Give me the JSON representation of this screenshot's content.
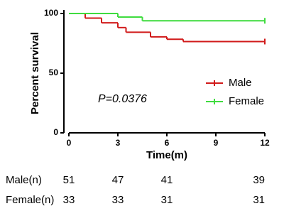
{
  "chart_data": {
    "type": "survival",
    "xlabel": "Time(m)",
    "ylabel": "Percent survival",
    "annotation": "P=0.0376",
    "xlim": [
      0,
      12
    ],
    "xticks": [
      0,
      3,
      6,
      9,
      12
    ],
    "ylim": [
      0,
      103
    ],
    "yticks": [
      0,
      50,
      100
    ],
    "series": [
      {
        "name": "Male",
        "color": "#d11a1a",
        "x": [
          0,
          1,
          2,
          3,
          3.5,
          5,
          6,
          7,
          12
        ],
        "values": [
          100,
          96.1,
          92.2,
          88.2,
          84.3,
          80.4,
          78.4,
          76.5,
          76.5
        ]
      },
      {
        "name": "Female",
        "color": "#3fdc3f",
        "x": [
          0,
          3,
          4.5,
          12
        ],
        "values": [
          100,
          97,
          93.9,
          93.9
        ]
      }
    ],
    "at_risk": [
      {
        "label": "Male(n)",
        "values": [
          51,
          47,
          41,
          39
        ]
      },
      {
        "label": "Female(n)",
        "values": [
          33,
          33,
          31,
          31
        ]
      }
    ]
  }
}
